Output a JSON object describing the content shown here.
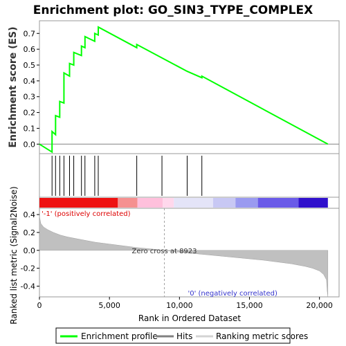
{
  "chart_data": {
    "type": "line",
    "title": "Enrichment plot: GO_SIN3_TYPE_COMPLEX",
    "es_panel": {
      "ylabel": "Enrichment score (ES)",
      "ylim": [
        -0.06,
        0.78
      ],
      "yticks": [
        0.0,
        0.1,
        0.2,
        0.3,
        0.4,
        0.5,
        0.6,
        0.7
      ],
      "ytick_labels": [
        "0.0",
        "0.1",
        "0.2",
        "0.3",
        "0.4",
        "0.5",
        "0.6",
        "0.7"
      ],
      "series": [
        {
          "name": "Enrichment profile",
          "color": "#00ff00",
          "x": [
            0,
            900,
            900,
            1150,
            1150,
            1450,
            1450,
            1750,
            1750,
            2150,
            2150,
            2450,
            2450,
            3000,
            3000,
            3250,
            3250,
            3950,
            3950,
            4200,
            4200,
            6950,
            6950,
            10550,
            10550,
            11600,
            11600,
            20600
          ],
          "y": [
            0.0,
            -0.05,
            0.08,
            0.06,
            0.18,
            0.17,
            0.27,
            0.26,
            0.45,
            0.43,
            0.51,
            0.5,
            0.58,
            0.56,
            0.62,
            0.61,
            0.68,
            0.65,
            0.7,
            0.69,
            0.74,
            0.61,
            0.63,
            0.46,
            0.46,
            0.42,
            0.43,
            0.0
          ]
        }
      ]
    },
    "hits": {
      "name": "Hits",
      "positions": [
        900,
        1150,
        1450,
        1750,
        2150,
        2450,
        3000,
        3250,
        3950,
        4200,
        6950,
        8750,
        10550,
        11600
      ]
    },
    "ranking_panel": {
      "name": "Ranking metric scores",
      "ylabel": "Ranked list metric (Signal2Noise)",
      "ylim": [
        -0.52,
        0.47
      ],
      "yticks": [
        -0.4,
        -0.2,
        0.0,
        0.2,
        0.4
      ],
      "ytick_labels": [
        "-0.4",
        "-0.2",
        "0.0",
        "0.2",
        "0.4"
      ],
      "x": [
        0,
        100,
        300,
        600,
        1000,
        1500,
        2000,
        3000,
        4000,
        5000,
        6000,
        7000,
        8000,
        8923,
        10000,
        12000,
        14000,
        16000,
        18000,
        19000,
        19500,
        20000,
        20300,
        20500,
        20550,
        20600
      ],
      "y": [
        0.38,
        0.3,
        0.26,
        0.23,
        0.2,
        0.17,
        0.15,
        0.12,
        0.09,
        0.07,
        0.05,
        0.03,
        0.015,
        0.0,
        -0.02,
        -0.05,
        -0.08,
        -0.11,
        -0.15,
        -0.18,
        -0.2,
        -0.23,
        -0.27,
        -0.33,
        -0.45,
        -0.52
      ],
      "zero_cross_label": "Zero cross at 8923",
      "zero_cross": 8923,
      "pos_label": "'-1' (positively correlated)",
      "neg_label": "'0' (negatively correlated)"
    },
    "x_axis": {
      "xlabel": "Rank in Ordered Dataset",
      "xlim": [
        0,
        21400
      ],
      "xticks": [
        0,
        5000,
        10000,
        15000,
        20000
      ],
      "xtick_labels": [
        "0",
        "5,000",
        "10,000",
        "15,000",
        "20,000"
      ]
    },
    "color_bar": {
      "segments": [
        {
          "x0": 0,
          "x1": 5600,
          "color": "#ee1111"
        },
        {
          "x0": 5600,
          "x1": 7000,
          "color": "#f59090"
        },
        {
          "x0": 7000,
          "x1": 8800,
          "color": "#ffc0dc"
        },
        {
          "x0": 8800,
          "x1": 9600,
          "color": "#ffd8ec"
        },
        {
          "x0": 9600,
          "x1": 12400,
          "color": "#e4e4f8"
        },
        {
          "x0": 12400,
          "x1": 14000,
          "color": "#c8c8f4"
        },
        {
          "x0": 14000,
          "x1": 15600,
          "color": "#9a9af0"
        },
        {
          "x0": 15600,
          "x1": 18500,
          "color": "#6a5ae8"
        },
        {
          "x0": 18500,
          "x1": 20600,
          "color": "#3010cc"
        }
      ]
    },
    "legend": {
      "items": [
        {
          "label": "Enrichment profile",
          "color": "#00ff00"
        },
        {
          "label": "Hits",
          "color": "#808080"
        },
        {
          "label": "Ranking metric scores",
          "color": "#d3d3d3"
        }
      ],
      "placement": "bottom"
    }
  }
}
